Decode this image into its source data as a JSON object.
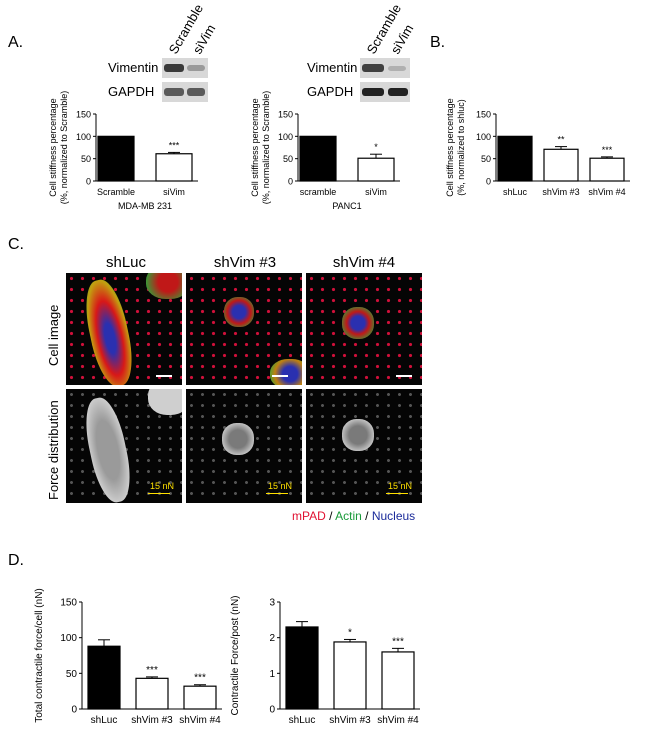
{
  "panel_labels": {
    "a": "A.",
    "b": "B.",
    "c": "C.",
    "d": "D."
  },
  "blots": {
    "left": {
      "lanes": [
        "Scramble",
        "siVim"
      ],
      "rows": [
        "Vimentin",
        "GAPDH"
      ]
    },
    "right": {
      "lanes": [
        "Scramble",
        "siVim"
      ],
      "rows": [
        "Vimentin",
        "GAPDH"
      ]
    }
  },
  "panel_c": {
    "columns": [
      "shLuc",
      "shVim #3",
      "shVim #4"
    ],
    "rows": [
      "Cell image",
      "Force distribution"
    ],
    "force_scale_label": "15 nN",
    "legend": [
      {
        "text": "mPAD",
        "color": "#e01030"
      },
      {
        "text": " / ",
        "color": "#000000"
      },
      {
        "text": "Actin",
        "color": "#1a9a3a"
      },
      {
        "text": " / ",
        "color": "#000000"
      },
      {
        "text": "Nucleus",
        "color": "#1a2a9a"
      }
    ]
  },
  "chart_data": [
    {
      "id": "A1",
      "type": "bar",
      "categories": [
        "Scramble",
        "siVim"
      ],
      "values": [
        100,
        61
      ],
      "errors": [
        0,
        3
      ],
      "significance": [
        "",
        "***"
      ],
      "fills": [
        "#000000",
        "#ffffff"
      ],
      "ylabel": [
        "Cell stiffness percentage",
        "(%, normalized to Scramble)"
      ],
      "xlabel": "MDA-MB 231",
      "ylim": [
        0,
        150
      ],
      "yticks": [
        0,
        50,
        100,
        150
      ]
    },
    {
      "id": "A2",
      "type": "bar",
      "categories": [
        "scramble",
        "siVim"
      ],
      "values": [
        100,
        51
      ],
      "errors": [
        0,
        9
      ],
      "significance": [
        "",
        "*"
      ],
      "fills": [
        "#000000",
        "#ffffff"
      ],
      "ylabel": [
        "Cell stiffness percentage",
        "(%, normalized to Scramble)"
      ],
      "xlabel": "PANC1",
      "ylim": [
        0,
        150
      ],
      "yticks": [
        0,
        50,
        100,
        150
      ]
    },
    {
      "id": "B",
      "type": "bar",
      "categories": [
        "shLuc",
        "shVim #3",
        "shVim #4"
      ],
      "values": [
        100,
        71,
        51
      ],
      "errors": [
        0,
        6,
        3
      ],
      "significance": [
        "",
        "**",
        "***"
      ],
      "fills": [
        "#000000",
        "#ffffff",
        "#ffffff"
      ],
      "ylabel": [
        "Cell stiffness percentage",
        "(%, normalized to shluc)"
      ],
      "xlabel": "",
      "ylim": [
        0,
        150
      ],
      "yticks": [
        0,
        50,
        100,
        150
      ]
    },
    {
      "id": "D1",
      "type": "bar",
      "categories": [
        "shLuc",
        "shVim #3",
        "shVim #4"
      ],
      "values": [
        88,
        43,
        32
      ],
      "errors": [
        9,
        2,
        2
      ],
      "significance": [
        "",
        "***",
        "***"
      ],
      "fills": [
        "#000000",
        "#ffffff",
        "#ffffff"
      ],
      "ylabel": [
        "Total contractile force/cell (nN)"
      ],
      "xlabel": "",
      "ylim": [
        0,
        150
      ],
      "yticks": [
        0,
        50,
        100,
        150
      ]
    },
    {
      "id": "D2",
      "type": "bar",
      "categories": [
        "shLuc",
        "shVim #3",
        "shVim #4"
      ],
      "values": [
        2.3,
        1.88,
        1.6
      ],
      "errors": [
        0.15,
        0.07,
        0.1
      ],
      "significance": [
        "",
        "*",
        "***"
      ],
      "fills": [
        "#000000",
        "#ffffff",
        "#ffffff"
      ],
      "ylabel": [
        "Contractile Force/post (nN)"
      ],
      "xlabel": "",
      "ylim": [
        0,
        3
      ],
      "yticks": [
        0,
        1,
        2,
        3
      ]
    }
  ]
}
